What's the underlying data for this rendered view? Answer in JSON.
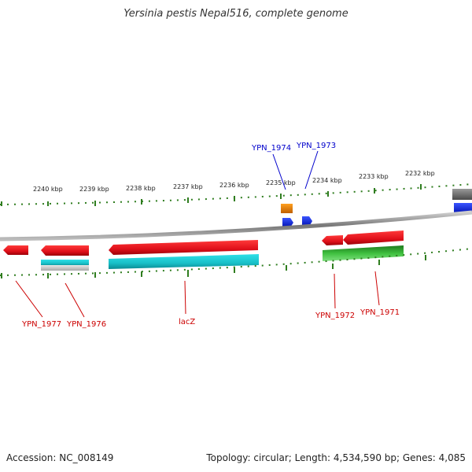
{
  "title": "Yersinia pestis Nepal516, complete genome",
  "footer": {
    "accession": "Accession: NC_008149",
    "info": "Topology: circular; Length: 4,534,590 bp; Genes: 4,085"
  },
  "ruler_labels": [
    "2240 kbp",
    "2239 kbp",
    "2238 kbp",
    "2237 kbp",
    "2236 kbp",
    "2235 kbp",
    "2234 kbp",
    "2233 kbp",
    "2232 kbp"
  ],
  "gene_labels": [
    "YPN_1974",
    "YPN_1973",
    "YPN_1977",
    "YPN_1976",
    "lacZ",
    "YPN_1972",
    "YPN_1971"
  ],
  "colors": {
    "forward_label": "#0000cc",
    "reverse_label": "#cc0000",
    "red": "#e0141c",
    "cyan": "#18c0c8",
    "green": "#2fae2f",
    "blue": "#0a1fe0",
    "orange": "#f08a00",
    "gray": "#888888",
    "tick": "#2f7d1f"
  }
}
